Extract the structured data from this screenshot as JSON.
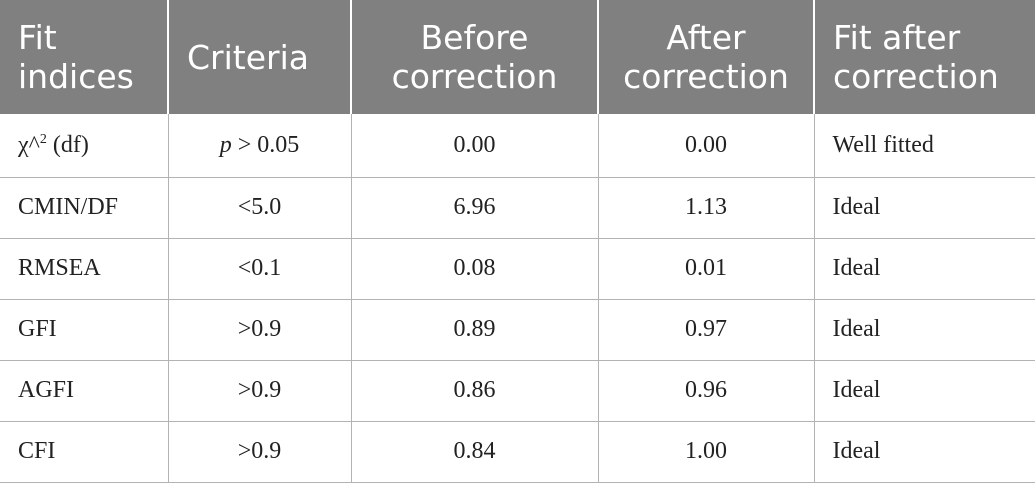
{
  "table": {
    "headers": [
      [
        "Fit",
        "indices"
      ],
      [
        "Criteria"
      ],
      [
        "Before",
        "correction"
      ],
      [
        "After",
        "correction"
      ],
      [
        "Fit after",
        "correction"
      ]
    ],
    "rows": [
      {
        "index_main": "χ^",
        "index_sup": "2",
        "index_tail": " (df)",
        "criteria_p": "p",
        "criteria_rest": " > 0.05",
        "before": "0.00",
        "after": "0.00",
        "fit": "Well fitted"
      },
      {
        "index": "CMIN/DF",
        "criteria": "<5.0",
        "before": "6.96",
        "after": "1.13",
        "fit": "Ideal"
      },
      {
        "index": "RMSEA",
        "criteria": "<0.1",
        "before": "0.08",
        "after": "0.01",
        "fit": "Ideal"
      },
      {
        "index": "GFI",
        "criteria": ">0.9",
        "before": "0.89",
        "after": "0.97",
        "fit": "Ideal"
      },
      {
        "index": "AGFI",
        "criteria": ">0.9",
        "before": "0.86",
        "after": "0.96",
        "fit": "Ideal"
      },
      {
        "index": "CFI",
        "criteria": ">0.9",
        "before": "0.84",
        "after": "1.00",
        "fit": "Ideal"
      }
    ]
  },
  "colors": {
    "header_bg": "#808080",
    "header_text": "#ffffff",
    "grid_line": "#b3b3b3"
  }
}
